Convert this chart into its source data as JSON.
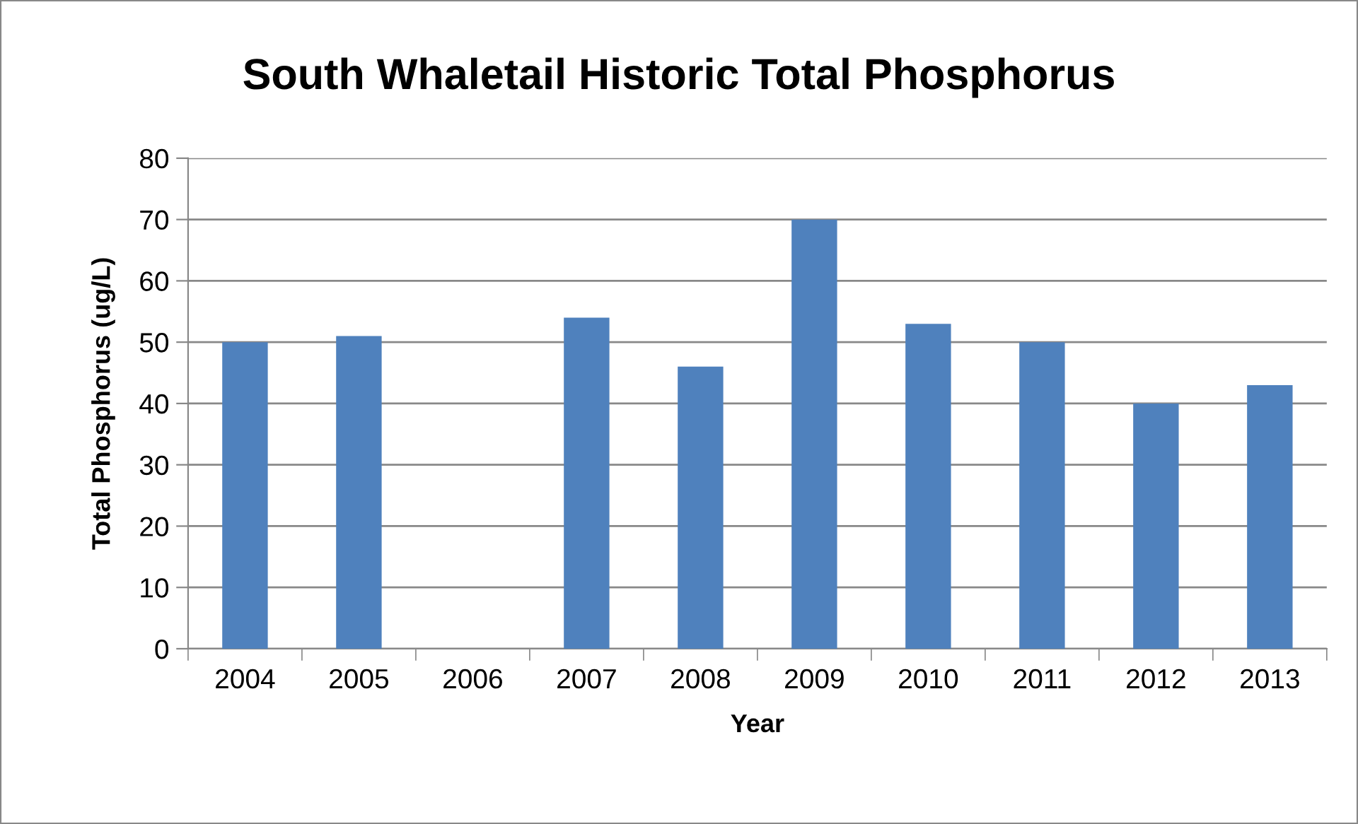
{
  "chart_data": {
    "type": "bar",
    "title": "South Whaletail Historic Total Phosphorus",
    "xlabel": "Year",
    "ylabel": "Total Phosphorus (ug/L)",
    "categories": [
      "2004",
      "2005",
      "2006",
      "2007",
      "2008",
      "2009",
      "2010",
      "2011",
      "2012",
      "2013"
    ],
    "values": [
      50,
      51,
      null,
      54,
      46,
      70,
      53,
      50,
      40,
      43
    ],
    "color": "#4f81bd",
    "ylim": [
      0,
      80
    ],
    "yticks": [
      0,
      10,
      20,
      30,
      40,
      50,
      60,
      70,
      80
    ],
    "grid": "y"
  }
}
